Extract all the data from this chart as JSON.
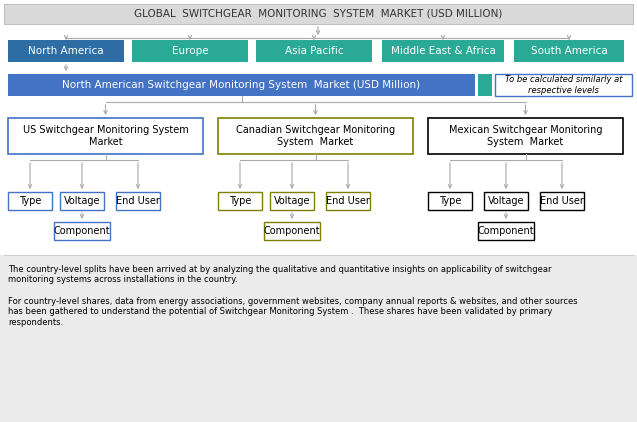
{
  "title": "GLOBAL  SWITCHGEAR  MONITORING  SYSTEM  MARKET (USD MILLION)",
  "title_bg": "#d9d9d9",
  "title_fontsize": 7.5,
  "title_color": "#333333",
  "bg_color": "#ffffff",
  "region_boxes": [
    "North America",
    "Europe",
    "Asia Pacific",
    "Middle East & Africa",
    "South America"
  ],
  "region_color": "#2e6da4",
  "teal_color": "#2aaa96",
  "na_bar_text": "North American Switchgear Monitoring System  Market (USD Million)",
  "na_bar_color": "#4472c4",
  "na_bar_text_color": "#ffffff",
  "note_text": "To be calculated similarly at\nrespective levels",
  "note_box_color": "#ffffff",
  "note_border_color": "#4472c4",
  "note_text_color": "#000000",
  "note_teal_box": "#2aaa96",
  "country_boxes": [
    "US Switchgear Monitoring System\nMarket",
    "Canadian Switchgear Monitoring\nSystem  Market",
    "Mexican Switchgear Monitoring\nSystem  Market"
  ],
  "country_border_colors": [
    "#4472c4",
    "#7f7f00",
    "#000000"
  ],
  "country_text_color": "#000000",
  "leaf_labels": [
    "Type",
    "Voltage",
    "End User"
  ],
  "component_label": "Component",
  "leaf_border_colors": [
    "#4472c4",
    "#7f7f00",
    "#000000"
  ],
  "component_border_colors": [
    "#4472c4",
    "#7f7f00",
    "#000000"
  ],
  "arrow_color": "#aaaaaa",
  "footnote1": "The country-level splits have been arrived at by analyzing the qualitative and quantitative insights on applicability of switchgear\nmonitoring systems across installations in the country.",
  "footnote2": "For country-level shares, data from energy associations, government websites, company annual reports & websites, and other sources\nhas been gathered to understand the potential of Switchgear Monitoring System .  These shares have been validated by primary\nrespondents.",
  "footnote_fontsize": 6.0,
  "footnote_color": "#000000",
  "footnote_bg": "#ebebeb"
}
